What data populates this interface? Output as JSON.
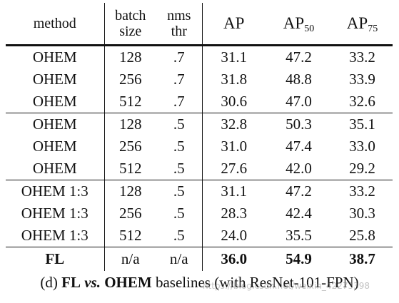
{
  "table": {
    "headers": {
      "method": "method",
      "batch_line1": "batch",
      "batch_line2": "size",
      "nms_line1": "nms",
      "nms_line2": "thr",
      "ap": "AP",
      "ap50_base": "AP",
      "ap50_sub": "50",
      "ap75_base": "AP",
      "ap75_sub": "75"
    },
    "rows": [
      {
        "method": "OHEM",
        "batch": "128",
        "nms": ".7",
        "ap": "31.1",
        "ap50": "47.2",
        "ap75": "33.2"
      },
      {
        "method": "OHEM",
        "batch": "256",
        "nms": ".7",
        "ap": "31.8",
        "ap50": "48.8",
        "ap75": "33.9"
      },
      {
        "method": "OHEM",
        "batch": "512",
        "nms": ".7",
        "ap": "30.6",
        "ap50": "47.0",
        "ap75": "32.6"
      },
      {
        "method": "OHEM",
        "batch": "128",
        "nms": ".5",
        "ap": "32.8",
        "ap50": "50.3",
        "ap75": "35.1"
      },
      {
        "method": "OHEM",
        "batch": "256",
        "nms": ".5",
        "ap": "31.0",
        "ap50": "47.4",
        "ap75": "33.0"
      },
      {
        "method": "OHEM",
        "batch": "512",
        "nms": ".5",
        "ap": "27.6",
        "ap50": "42.0",
        "ap75": "29.2"
      },
      {
        "method": "OHEM 1:3",
        "batch": "128",
        "nms": ".5",
        "ap": "31.1",
        "ap50": "47.2",
        "ap75": "33.2"
      },
      {
        "method": "OHEM 1:3",
        "batch": "256",
        "nms": ".5",
        "ap": "28.3",
        "ap50": "42.4",
        "ap75": "30.3"
      },
      {
        "method": "OHEM 1:3",
        "batch": "512",
        "nms": ".5",
        "ap": "24.0",
        "ap50": "35.5",
        "ap75": "25.8"
      },
      {
        "method": "FL",
        "batch": "n/a",
        "nms": "n/a",
        "ap": "36.0",
        "ap50": "54.9",
        "ap75": "38.7"
      }
    ]
  },
  "caption": {
    "prefix": "(d) ",
    "fl": "FL",
    "vs": " vs.",
    "ohem": " OHEM",
    "rest": " baselines (with ResNet-101-FPN)"
  },
  "watermark": "https://blog.csdn.net/weixin_42273398"
}
